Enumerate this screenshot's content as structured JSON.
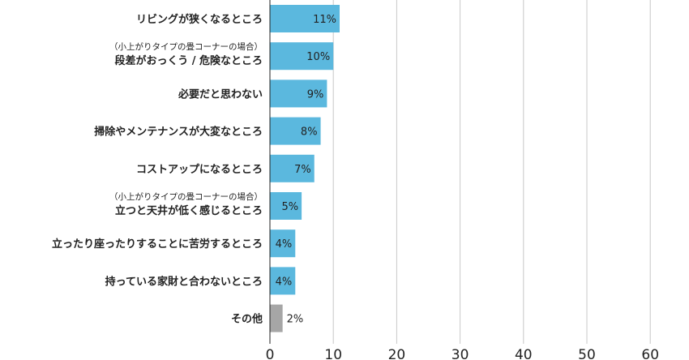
{
  "chart_data": {
    "type": "bar",
    "orientation": "horizontal",
    "categories": [
      {
        "note": "",
        "label": "リビングが狭くなるところ"
      },
      {
        "note": "（小上がりタイプの畳コーナーの場合）",
        "label": "段差がおっくう / 危険なところ"
      },
      {
        "note": "",
        "label": "必要だと思わない"
      },
      {
        "note": "",
        "label": "掃除やメンテナンスが大変なところ"
      },
      {
        "note": "",
        "label": "コストアップになるところ"
      },
      {
        "note": "（小上がりタイプの畳コーナーの場合）",
        "label": "立つと天井が低く感じるところ"
      },
      {
        "note": "",
        "label": "立ったり座ったりすることに苦労するところ"
      },
      {
        "note": "",
        "label": "持っている家財と合わないところ"
      },
      {
        "note": "",
        "label": "その他"
      }
    ],
    "values": [
      11,
      10,
      9,
      8,
      7,
      5,
      4,
      4,
      2
    ],
    "value_labels": [
      "11%",
      "10%",
      "9%",
      "8%",
      "7%",
      "5%",
      "4%",
      "4%",
      "2%"
    ],
    "xlim": [
      0,
      60
    ],
    "xticks": [
      "0",
      "10",
      "20",
      "30",
      "40",
      "50",
      "60"
    ],
    "grid": "vertical",
    "colors": {
      "bar": "#5bb8de",
      "other_bar": "#a6a6a6",
      "grid": "#c8c8c8",
      "axis": "#222222"
    }
  }
}
